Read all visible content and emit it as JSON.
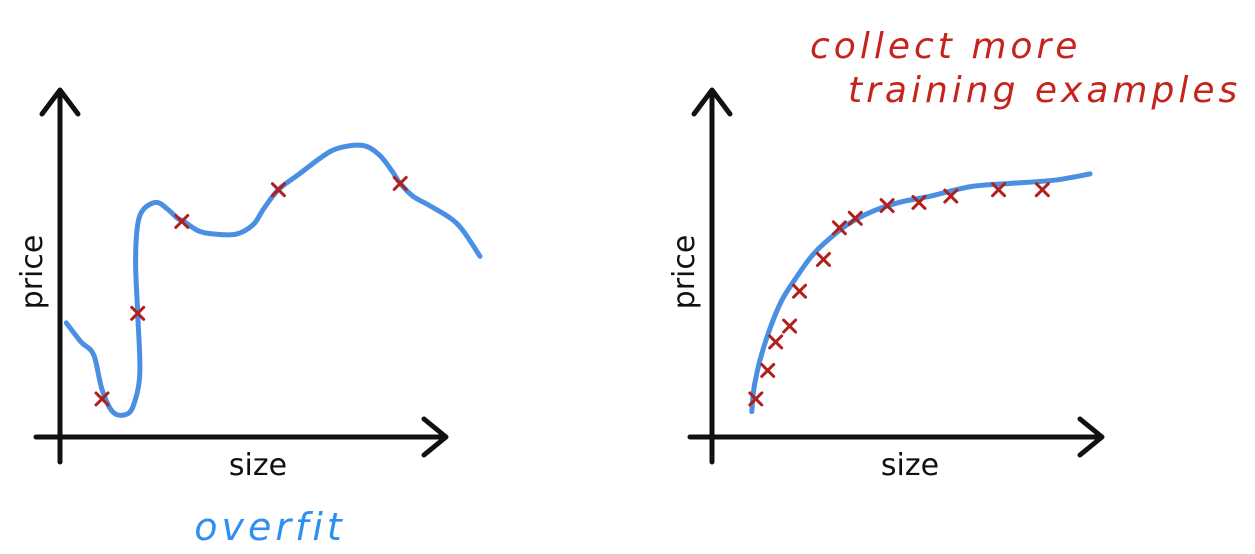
{
  "colors": {
    "axis": "#111111",
    "curve": "#4a8fe2",
    "marker": "#b0201e",
    "note_blue": "#2f8ff0",
    "note_red": "#c4241c"
  },
  "chart_data": [
    {
      "type": "scatter",
      "title": "",
      "xlabel": "size",
      "ylabel": "price",
      "xlim": [
        0,
        10
      ],
      "ylim": [
        0,
        10
      ],
      "grid": false,
      "annotation": "overfit",
      "series": [
        {
          "kind": "points",
          "x": [
            1.0,
            1.85,
            2.9,
            5.2,
            8.1
          ],
          "y": [
            1.2,
            3.9,
            6.8,
            7.8,
            8.0
          ]
        },
        {
          "kind": "fit-curve",
          "x": [
            0.15,
            0.5,
            0.8,
            1.0,
            1.25,
            1.55,
            1.75,
            1.9,
            1.85,
            1.8,
            1.85,
            2.0,
            2.3,
            2.55,
            2.8,
            2.95,
            3.3,
            3.7,
            4.2,
            4.6,
            4.85,
            5.2,
            5.7,
            6.2,
            6.6,
            7.2,
            7.6,
            7.9,
            8.1,
            8.4,
            8.8,
            9.3,
            9.6,
            10.0
          ],
          "y": [
            3.6,
            3.0,
            2.6,
            1.5,
            0.8,
            0.7,
            1.0,
            2.0,
            3.9,
            5.5,
            6.7,
            7.2,
            7.4,
            7.2,
            6.9,
            6.8,
            6.5,
            6.4,
            6.4,
            6.7,
            7.2,
            7.8,
            8.3,
            8.8,
            9.1,
            9.2,
            8.9,
            8.4,
            8.0,
            7.6,
            7.3,
            6.9,
            6.5,
            5.7
          ]
        }
      ]
    },
    {
      "type": "scatter",
      "title": "",
      "xlabel": "size",
      "ylabel": "price",
      "xlim": [
        0,
        10
      ],
      "ylim": [
        0,
        10
      ],
      "grid": false,
      "annotation": "collect more training examples",
      "series": [
        {
          "kind": "points",
          "x": [
            1.1,
            1.4,
            1.6,
            1.95,
            2.2,
            2.8,
            3.2,
            3.6,
            4.4,
            5.2,
            6.0,
            7.2,
            8.3
          ],
          "y": [
            1.2,
            2.1,
            3.0,
            3.5,
            4.6,
            5.6,
            6.6,
            6.9,
            7.3,
            7.4,
            7.6,
            7.8,
            7.8
          ]
        },
        {
          "kind": "fit-curve",
          "x": [
            1.0,
            1.05,
            1.2,
            1.45,
            1.75,
            2.1,
            2.5,
            2.9,
            3.4,
            4.0,
            4.7,
            5.5,
            6.5,
            7.5,
            8.6,
            9.5
          ],
          "y": [
            0.8,
            1.5,
            2.4,
            3.4,
            4.3,
            5.0,
            5.7,
            6.2,
            6.7,
            7.1,
            7.4,
            7.6,
            7.9,
            8.0,
            8.1,
            8.3
          ]
        }
      ]
    }
  ]
}
